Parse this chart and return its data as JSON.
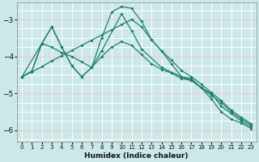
{
  "xlabel": "Humidex (Indice chaleur)",
  "ylabel": "",
  "bg_color": "#cce8e8",
  "grid_color_white": "#ffffff",
  "grid_color_pink": "#f0c8c8",
  "line_color": "#1a7a6e",
  "xlim": [
    -0.5,
    23.5
  ],
  "ylim": [
    -6.3,
    -2.55
  ],
  "yticks": [
    -6,
    -5,
    -4,
    -3
  ],
  "xticks": [
    0,
    1,
    2,
    3,
    4,
    5,
    6,
    7,
    8,
    9,
    10,
    11,
    12,
    13,
    14,
    15,
    16,
    17,
    18,
    19,
    20,
    21,
    22,
    23
  ],
  "line1_x": [
    0,
    1,
    2,
    3,
    4,
    5,
    6,
    7,
    8,
    9,
    10,
    11,
    12,
    13,
    14,
    15,
    16,
    17,
    18,
    19,
    20,
    21,
    22,
    23
  ],
  "line1_y": [
    -4.55,
    -4.4,
    -3.65,
    -3.2,
    -3.75,
    -4.25,
    -4.55,
    -4.3,
    -3.5,
    -2.8,
    -2.65,
    -2.7,
    -3.05,
    -3.55,
    -3.85,
    -4.2,
    -4.55,
    -4.6,
    -4.85,
    -5.15,
    -5.5,
    -5.7,
    -5.8,
    -5.95
  ],
  "line2_x": [
    0,
    1,
    2,
    3,
    4,
    5,
    6,
    7,
    8,
    9,
    10,
    11,
    12,
    13,
    14,
    15,
    16,
    17,
    18,
    19,
    20,
    21,
    22,
    23
  ],
  "line2_y": [
    -4.55,
    -4.4,
    -3.65,
    -3.75,
    -3.9,
    -4.0,
    -4.15,
    -4.3,
    -4.0,
    -3.75,
    -3.6,
    -3.7,
    -3.95,
    -4.2,
    -4.35,
    -4.45,
    -4.6,
    -4.65,
    -4.85,
    -5.05,
    -5.25,
    -5.5,
    -5.7,
    -5.85
  ],
  "line3_x": [
    0,
    2,
    3,
    4,
    5,
    6,
    7,
    8,
    10,
    11,
    12,
    14,
    16,
    17,
    18,
    19,
    20,
    21,
    22,
    23
  ],
  "line3_y": [
    -4.55,
    -3.65,
    -3.2,
    -3.75,
    -4.25,
    -4.55,
    -4.3,
    -3.85,
    -2.85,
    -3.3,
    -3.8,
    -4.3,
    -4.55,
    -4.65,
    -4.85,
    -5.0,
    -5.35,
    -5.55,
    -5.75,
    -5.9
  ],
  "line4_x": [
    0,
    1,
    2,
    3,
    4,
    5,
    6,
    7,
    8,
    9,
    10,
    11,
    12,
    13,
    14,
    15,
    16,
    17,
    18,
    19,
    20,
    21,
    22,
    23
  ],
  "line4_y": [
    -4.55,
    -4.42,
    -4.28,
    -4.12,
    -3.98,
    -3.84,
    -3.7,
    -3.56,
    -3.42,
    -3.28,
    -3.14,
    -3.0,
    -3.2,
    -3.55,
    -3.85,
    -4.1,
    -4.38,
    -4.55,
    -4.75,
    -4.98,
    -5.2,
    -5.45,
    -5.65,
    -5.82
  ]
}
